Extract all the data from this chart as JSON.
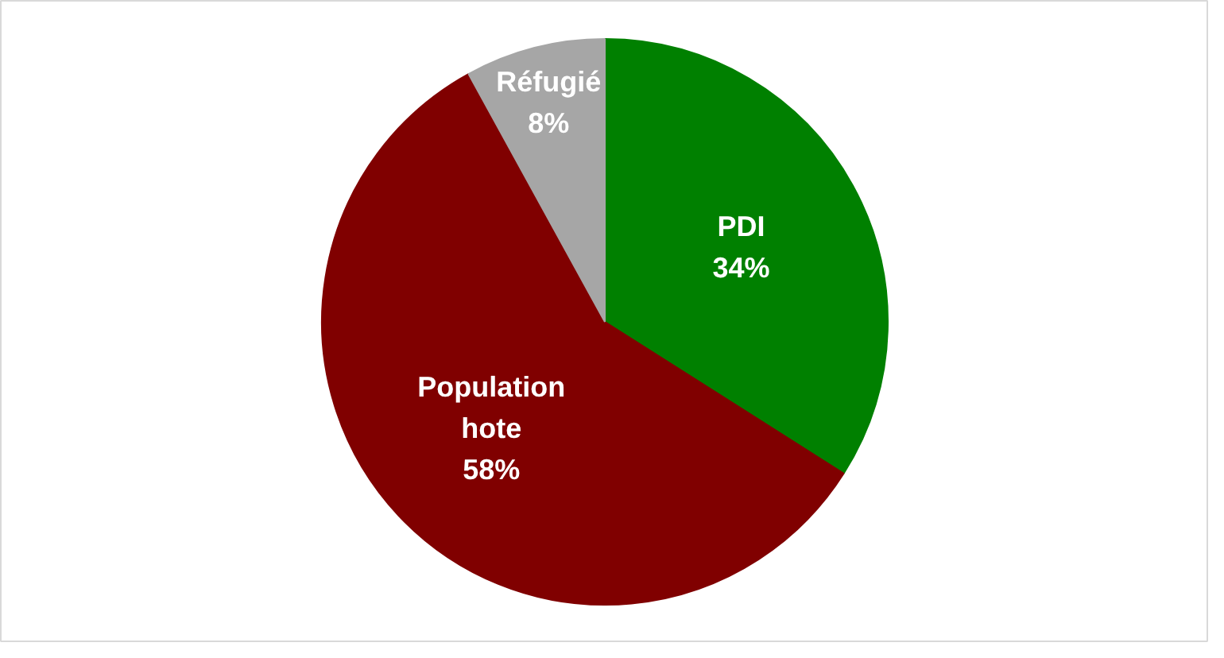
{
  "chart_data": {
    "type": "pie",
    "categories": [
      "PDI",
      "Population hote",
      "Réfugié"
    ],
    "values": [
      34,
      58,
      8
    ],
    "colors": [
      "#008000",
      "#800000",
      "#a6a6a6"
    ],
    "value_labels": [
      "34%",
      "58%",
      "8%"
    ]
  }
}
